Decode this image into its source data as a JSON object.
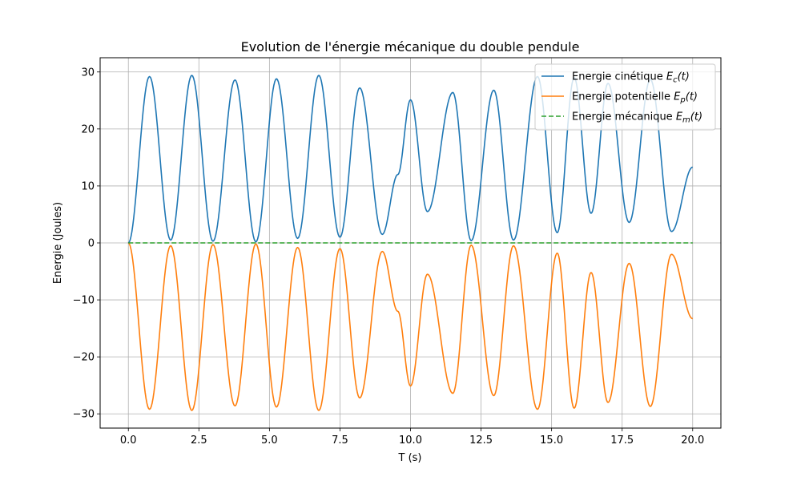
{
  "chart_data": {
    "type": "line",
    "title": "Evolution de l'énergie mécanique du double pendule",
    "xlabel": "T (s)",
    "ylabel": "Energie (Joules)",
    "xlim": [
      -1.0,
      21.0
    ],
    "ylim": [
      -32.5,
      32.5
    ],
    "xticks": [
      0.0,
      2.5,
      5.0,
      7.5,
      10.0,
      12.5,
      15.0,
      17.5,
      20.0
    ],
    "xtick_labels": [
      "0.0",
      "2.5",
      "5.0",
      "7.5",
      "10.0",
      "12.5",
      "15.0",
      "17.5",
      "20.0"
    ],
    "yticks": [
      -30,
      -20,
      -10,
      0,
      10,
      20,
      30
    ],
    "ytick_labels": [
      "−30",
      "−20",
      "−10",
      "0",
      "10",
      "20",
      "30"
    ],
    "grid": true,
    "legend_position": "top-right",
    "series": [
      {
        "name": "Energie cinétique",
        "name_var": "E",
        "name_sub": "c",
        "name_arg": "(t)",
        "color": "#1f77b4",
        "style": "solid",
        "extrema_t": [
          0.0,
          0.75,
          1.5,
          2.25,
          3.0,
          3.78,
          4.52,
          5.25,
          6.0,
          6.75,
          7.5,
          8.2,
          9.0,
          9.55,
          10.0,
          10.6,
          11.5,
          12.15,
          12.95,
          13.65,
          14.5,
          15.2,
          15.8,
          16.4,
          17.0,
          17.75,
          18.5,
          19.25,
          20.0
        ],
        "extrema_v": [
          0.0,
          29.2,
          0.5,
          29.4,
          0.3,
          28.6,
          0.2,
          28.8,
          0.8,
          29.4,
          1.0,
          27.2,
          1.5,
          12.0,
          25.1,
          5.5,
          26.4,
          0.4,
          26.8,
          0.5,
          29.2,
          1.8,
          29.0,
          5.2,
          28.0,
          3.6,
          28.7,
          2.0,
          13.3
        ]
      },
      {
        "name": "Energie potentielle",
        "name_var": "E",
        "name_sub": "p",
        "name_arg": "(t)",
        "color": "#ff7f0e",
        "style": "solid",
        "extrema_t": [
          0.0,
          0.75,
          1.5,
          2.25,
          3.0,
          3.78,
          4.52,
          5.25,
          6.0,
          6.75,
          7.5,
          8.2,
          9.0,
          9.55,
          10.0,
          10.6,
          11.5,
          12.15,
          12.95,
          13.65,
          14.5,
          15.2,
          15.8,
          16.4,
          17.0,
          17.75,
          18.5,
          19.25,
          20.0
        ],
        "extrema_v": [
          0.0,
          -29.2,
          -0.5,
          -29.4,
          -0.3,
          -28.6,
          -0.2,
          -28.8,
          -0.8,
          -29.4,
          -1.0,
          -27.2,
          -1.5,
          -12.0,
          -25.1,
          -5.5,
          -26.4,
          -0.4,
          -26.8,
          -0.5,
          -29.2,
          -1.8,
          -29.0,
          -5.2,
          -28.0,
          -3.6,
          -28.7,
          -2.0,
          -13.3
        ]
      },
      {
        "name": "Energie mécanique",
        "name_var": "E",
        "name_sub": "m",
        "name_arg": "(t)",
        "color": "#2ca02c",
        "style": "dashed",
        "extrema_t": [
          0.0,
          20.0
        ],
        "extrema_v": [
          0.0,
          0.0
        ]
      }
    ]
  }
}
